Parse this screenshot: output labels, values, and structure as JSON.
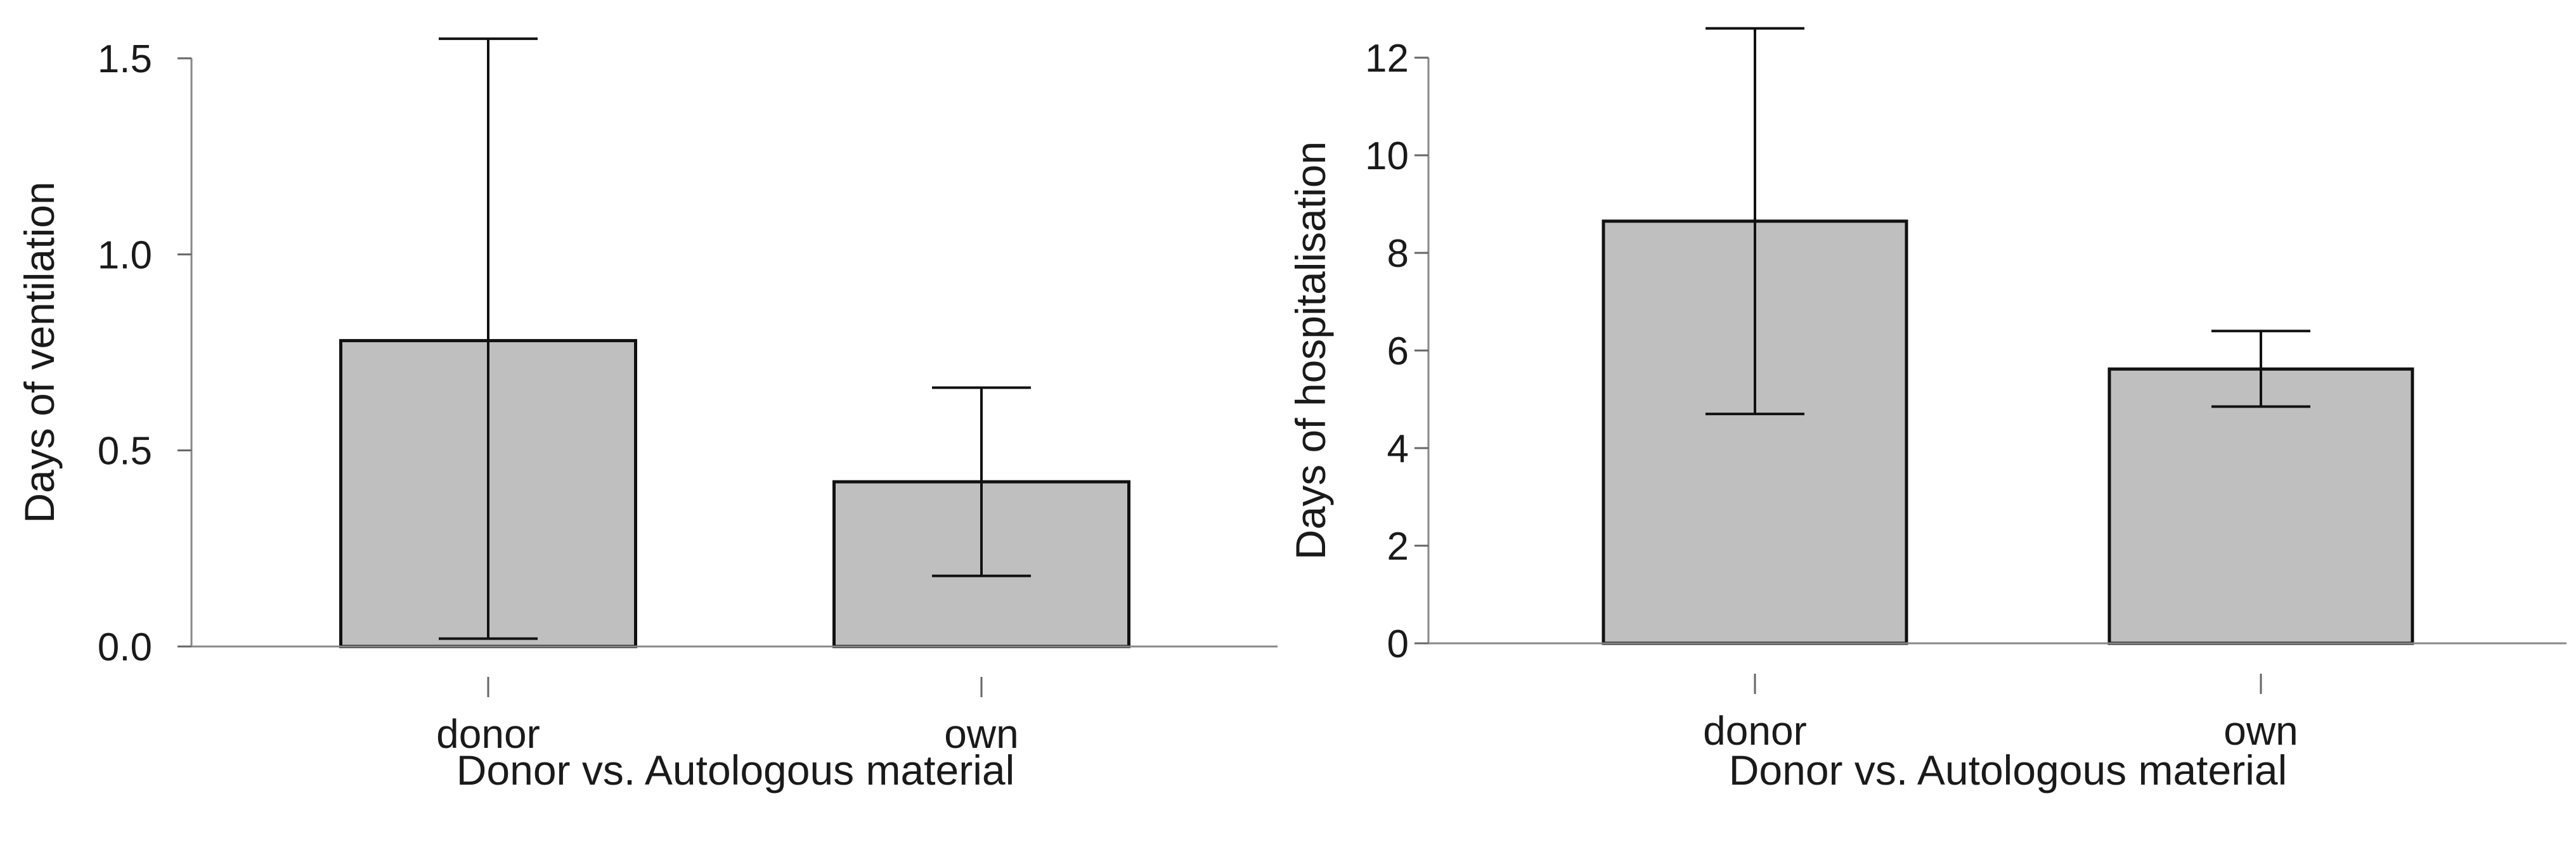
{
  "chart_data": [
    {
      "type": "bar",
      "categories": [
        "donor",
        "own"
      ],
      "values": [
        0.78,
        0.42
      ],
      "error_low": [
        0.02,
        0.18
      ],
      "error_high": [
        1.55,
        0.66
      ],
      "title": "",
      "xlabel": "Donor vs. Autologous material",
      "ylabel": "Days of ventilation",
      "ylim": [
        0,
        1.5
      ],
      "yticks": [
        "0.0",
        "0.5",
        "1.0",
        "1.5"
      ],
      "ytick_values": [
        0,
        0.5,
        1.0,
        1.5
      ],
      "bar_color": "#bfbfbf",
      "grid": false
    },
    {
      "type": "bar",
      "categories": [
        "donor",
        "own"
      ],
      "values": [
        8.65,
        5.62
      ],
      "error_low": [
        4.7,
        4.85
      ],
      "error_high": [
        12.6,
        6.4
      ],
      "title": "",
      "xlabel": "Donor vs. Autologous material",
      "ylabel": "Days of hospitalisation",
      "ylim": [
        0,
        12
      ],
      "yticks": [
        "0",
        "2",
        "4",
        "6",
        "8",
        "10",
        "12"
      ],
      "ytick_values": [
        0,
        2,
        4,
        6,
        8,
        10,
        12
      ],
      "bar_color": "#bfbfbf",
      "grid": false
    }
  ]
}
